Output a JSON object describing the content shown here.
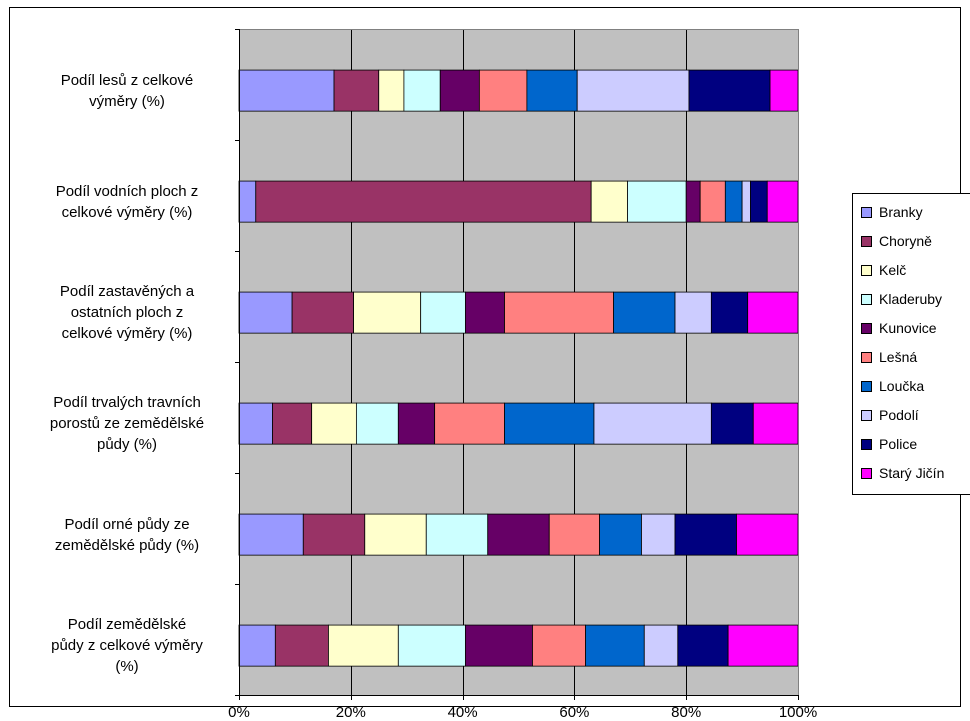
{
  "chart_data": {
    "type": "bar",
    "orientation": "horizontal",
    "stacked": "percent",
    "categories": [
      "Podíl lesů z celkové\nvýměry (%)",
      "Podíl vodních ploch z\ncelkové výměry (%)",
      "Podíl zastavěných a\nostatních ploch z\ncelkové výměry (%)",
      "Podíl trvalých travních\nporostů ze zemědělské\npůdy (%)",
      "Podíl orné půdy ze\nzemědělské půdy (%)",
      "Podíl zemědělské\npůdy z celkové výměry\n(%)"
    ],
    "series": [
      {
        "name": "Branky",
        "color": "#9999FF",
        "values": [
          17,
          3,
          9.5,
          6,
          11.5,
          6.5
        ]
      },
      {
        "name": "Choryně",
        "color": "#993366",
        "values": [
          8,
          60,
          11,
          7,
          11,
          9.5
        ]
      },
      {
        "name": "Kelč",
        "color": "#FFFFCC",
        "values": [
          4.5,
          6.5,
          12,
          8,
          11,
          12.5
        ]
      },
      {
        "name": "Kladeruby",
        "color": "#CCFFFF",
        "values": [
          6.5,
          10.5,
          8,
          7.5,
          11,
          12
        ]
      },
      {
        "name": "Kunovice",
        "color": "#660066",
        "values": [
          7,
          2.5,
          7,
          6.5,
          11,
          12
        ]
      },
      {
        "name": "Lešná",
        "color": "#FF8080",
        "values": [
          8.5,
          4.5,
          19.5,
          12.5,
          9,
          9.5
        ]
      },
      {
        "name": "Loučka",
        "color": "#0066CC",
        "values": [
          9,
          3,
          11,
          16,
          7.5,
          10.5
        ]
      },
      {
        "name": "Podolí",
        "color": "#CCCCFF",
        "values": [
          20,
          1.5,
          6.5,
          21,
          6,
          6
        ]
      },
      {
        "name": "Police",
        "color": "#000080",
        "values": [
          14.5,
          3,
          6.5,
          7.5,
          11,
          9
        ]
      },
      {
        "name": "Starý Jičín",
        "color": "#FF00FF",
        "values": [
          5,
          5.5,
          9,
          8,
          11,
          12.5
        ]
      }
    ],
    "x_ticks": [
      "0%",
      "20%",
      "40%",
      "60%",
      "80%",
      "100%"
    ],
    "xlim": [
      0,
      100
    ],
    "plot_background": "#C0C0C0",
    "grid": true,
    "legend_position": "right",
    "title": "",
    "xlabel": "",
    "ylabel": ""
  }
}
